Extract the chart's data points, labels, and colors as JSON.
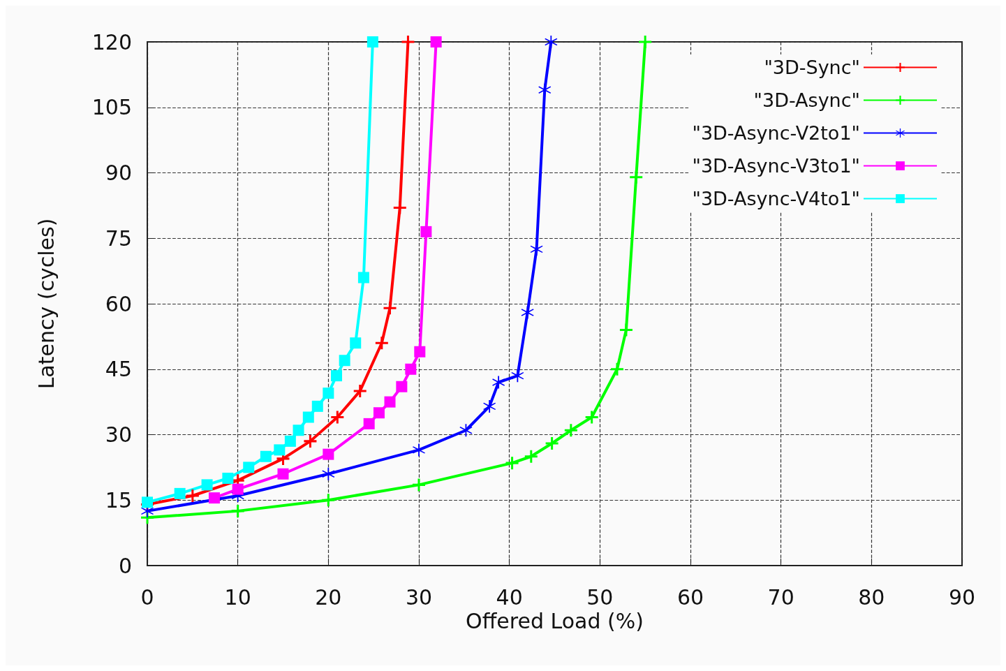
{
  "chart_data": {
    "type": "line",
    "xlabel": "Offered Load (%)",
    "ylabel": "Latency (cycles)",
    "xlim": [
      0,
      90
    ],
    "xticks": [
      0,
      10,
      20,
      30,
      40,
      50,
      60,
      70,
      80,
      90
    ],
    "ylim": [
      0,
      120
    ],
    "yticks": [
      0,
      15,
      30,
      45,
      60,
      75,
      90,
      105,
      120
    ],
    "grid": true,
    "legend": "top right",
    "series": [
      {
        "name": "\"3D-Sync\"",
        "color": "#ff0000",
        "marker": "cross",
        "x": [
          0,
          5,
          10,
          15,
          18,
          21,
          23.5,
          25.9,
          26.8,
          27.9,
          28.8
        ],
        "values": [
          14,
          16,
          19.5,
          24.5,
          28.5,
          34,
          40,
          51,
          59,
          82,
          120
        ]
      },
      {
        "name": "\"3D-Async\"",
        "color": "#00ff00",
        "marker": "cross",
        "x": [
          0,
          10,
          20,
          30,
          40.3,
          42.4,
          44.7,
          46.8,
          49.1,
          51.9,
          52.9,
          54,
          55
        ],
        "values": [
          11,
          12.5,
          15,
          18.5,
          23.5,
          25,
          28,
          31,
          34,
          45,
          54,
          89,
          120
        ]
      },
      {
        "name": "\"3D-Async-V2to1\"",
        "color": "#0000ff",
        "marker": "star",
        "x": [
          0,
          10,
          20,
          30,
          35.2,
          37.8,
          38.8,
          40.9,
          42,
          43,
          43.9,
          44.6
        ],
        "values": [
          12.5,
          16,
          21,
          26.5,
          31,
          36.5,
          42,
          43.5,
          58,
          72.5,
          109,
          120
        ]
      },
      {
        "name": "\"3D-Async-V3to1\"",
        "color": "#ff00ff",
        "marker": "square",
        "x": [
          7.4,
          10,
          15,
          20,
          24.5,
          25.6,
          26.8,
          28.1,
          29.1,
          30.1,
          30.8,
          31.9
        ],
        "values": [
          15.5,
          17.5,
          21,
          25.5,
          32.5,
          35,
          37.5,
          41,
          45,
          49,
          76.5,
          120
        ]
      },
      {
        "name": "\"3D-Async-V4to1\"",
        "color": "#00ffff",
        "marker": "square",
        "x": [
          0,
          3.6,
          6.6,
          8.9,
          11.2,
          13.1,
          14.6,
          15.8,
          16.7,
          17.8,
          18.8,
          20,
          20.9,
          21.8,
          23,
          23.9,
          24.9
        ],
        "values": [
          14.5,
          16.5,
          18.5,
          20,
          22.5,
          25,
          26.5,
          28.5,
          31,
          34,
          36.5,
          39.5,
          43.5,
          47,
          51,
          66,
          120
        ]
      }
    ]
  }
}
